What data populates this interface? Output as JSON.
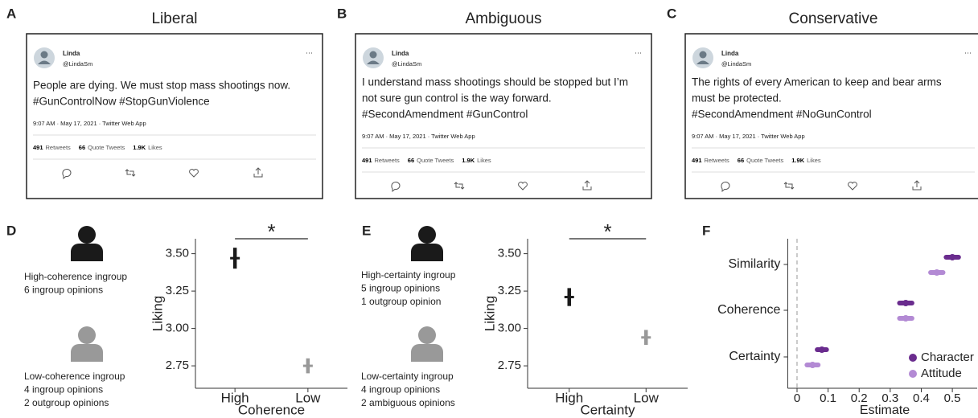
{
  "panels": [
    {
      "letter": "A",
      "title": "Liberal"
    },
    {
      "letter": "B",
      "title": "Ambiguous"
    },
    {
      "letter": "C",
      "title": "Conservative"
    }
  ],
  "tweets": [
    {
      "name": "Linda",
      "handle": "@LindaSm",
      "more": "···",
      "lines": [
        "People are dying. We must stop mass shootings now."
      ],
      "hashtags": "#GunControlNow #StopGunViolence",
      "meta": "9:07 AM · May 17, 2021 · Twitter Web App",
      "stats": [
        {
          "count": "491",
          "label": "Retweets"
        },
        {
          "count": "66",
          "label": "Quote Tweets"
        },
        {
          "count": "1.9K",
          "label": "Likes"
        }
      ]
    },
    {
      "name": "Linda",
      "handle": "@LindaSm",
      "more": "···",
      "lines": [
        "I understand mass shootings should be stopped but I’m",
        "not sure gun control is the way forward."
      ],
      "hashtags": "#SecondAmendment #GunControl",
      "meta": "9:07 AM · May 17, 2021 · Twitter Web App",
      "stats": [
        {
          "count": "491",
          "label": "Retweets"
        },
        {
          "count": "66",
          "label": "Quote Tweets"
        },
        {
          "count": "1.9K",
          "label": "Likes"
        }
      ]
    },
    {
      "name": "Linda",
      "handle": "@LindaSm",
      "more": "···",
      "lines": [
        "The rights of every American to keep and bear arms",
        "must be protected."
      ],
      "hashtags": "#SecondAmendment #NoGunControl",
      "meta": "9:07 AM · May 17, 2021 · Twitter Web App",
      "stats": [
        {
          "count": "491",
          "label": "Retweets"
        },
        {
          "count": "66",
          "label": "Quote Tweets"
        },
        {
          "count": "1.9K",
          "label": "Likes"
        }
      ]
    }
  ],
  "chart_data": [
    {
      "type": "pointrange",
      "panel": "D",
      "y_label": "Liking",
      "x_label": "Coherence",
      "groups": [
        [
          "High-coherence ingroup",
          "6 ingroup opinions"
        ],
        [
          "Low-coherence ingroup",
          "4 ingroup opinions",
          "2 outgroup opinions"
        ]
      ],
      "categories": [
        "High",
        "Low"
      ],
      "values": [
        3.47,
        2.75
      ],
      "errors": [
        0.07,
        0.05
      ],
      "colors": [
        "#1a1a1a",
        "#999999"
      ],
      "significance": "*",
      "ylim": [
        2.6,
        3.6
      ],
      "yticks": [
        2.75,
        {
          "value": 3.0,
          "label": "3.00"
        },
        3.25,
        {
          "value": 3.5,
          "label": "3.50"
        }
      ]
    },
    {
      "type": "pointrange",
      "panel": "E",
      "y_label": "Liking",
      "x_label": "Certainty",
      "groups": [
        [
          "High-certainty ingroup",
          "5 ingroup opinions",
          "1 outgroup opinion"
        ],
        [
          "Low-certainty ingroup",
          "4 ingroup opinions",
          "2 ambiguous opinions"
        ]
      ],
      "categories": [
        "High",
        "Low"
      ],
      "values": [
        3.21,
        2.94
      ],
      "errors": [
        0.06,
        0.05
      ],
      "colors": [
        "#1a1a1a",
        "#999999"
      ],
      "significance": "*",
      "ylim": [
        2.6,
        3.6
      ],
      "yticks": [
        2.75,
        {
          "value": 3.0,
          "label": "3.00"
        },
        3.25,
        {
          "value": 3.5,
          "label": "3.50"
        }
      ]
    },
    {
      "type": "dotplot",
      "panel": "F",
      "x_label": "Estimate",
      "categories": [
        "Similarity",
        "Coherence",
        "Certainty"
      ],
      "series": [
        {
          "name": "Character",
          "color": "#6a2c8e",
          "values": [
            0.5,
            0.35,
            0.08
          ],
          "errors": [
            0.02,
            0.02,
            0.015
          ]
        },
        {
          "name": "Attitude",
          "color": "#b38ad4",
          "values": [
            0.45,
            0.35,
            0.05
          ],
          "errors": [
            0.02,
            0.02,
            0.018
          ]
        }
      ],
      "reference_line": 0,
      "xlim": [
        -0.03,
        0.58
      ],
      "xticks": [
        0,
        0.1,
        0.2,
        0.3,
        0.4,
        0.5
      ]
    }
  ]
}
